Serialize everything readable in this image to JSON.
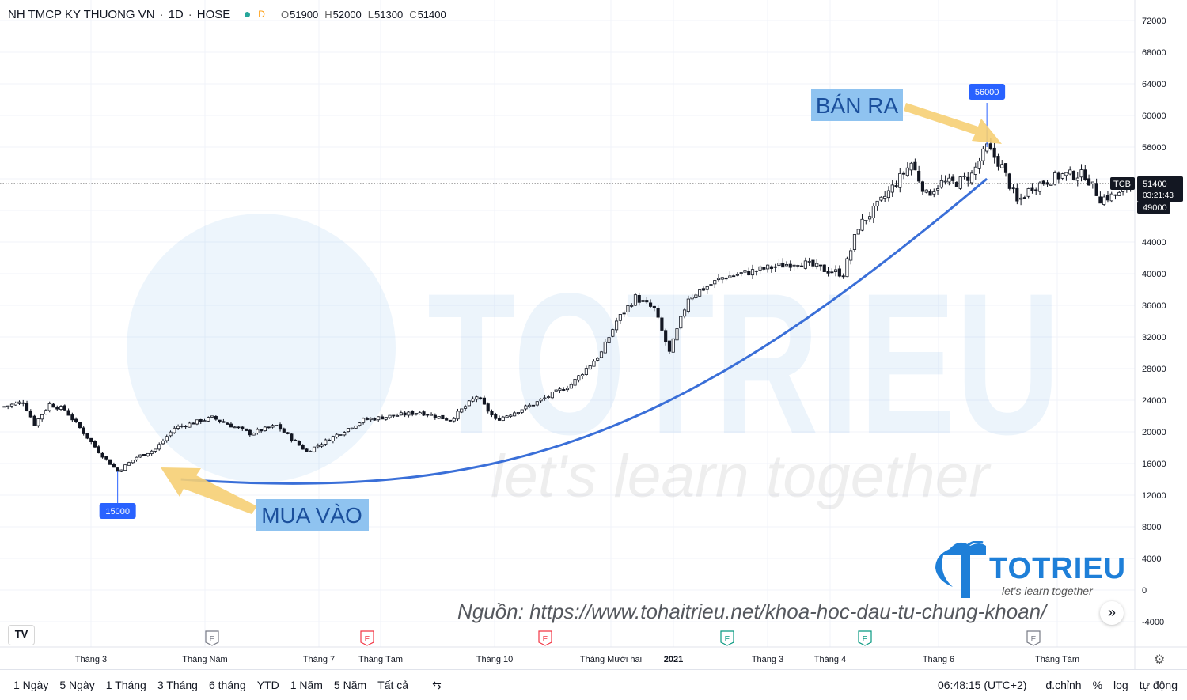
{
  "header": {
    "symbol_name": "NH TMCP KY THUONG VN",
    "interval": "1D",
    "exchange": "HOSE",
    "badge": "D",
    "ohlc": [
      {
        "k": "O",
        "v": "51900"
      },
      {
        "k": "H",
        "v": "52000"
      },
      {
        "k": "L",
        "v": "51300"
      },
      {
        "k": "C",
        "v": "51400"
      }
    ]
  },
  "annotations": {
    "buy_text": "MUA VÀO",
    "sell_text": "BÁN RA",
    "low_label": "15000",
    "high_label": "56000"
  },
  "price_tag": {
    "ticker": "TCB",
    "price": "51400",
    "countdown": "03:21:43",
    "crosshair": "49000"
  },
  "watermark": {
    "big": "TOTRIEU",
    "small": "let's learn together"
  },
  "logo": {
    "word": "TOTRIEU",
    "tag": "let's learn together"
  },
  "source_text": "Nguồn: https://www.tohaitrieu.net/khoa-hoc-dau-tu-chung-khoan/",
  "bottom": {
    "ranges": [
      "1 Ngày",
      "5 Ngày",
      "1 Tháng",
      "3 Tháng",
      "6 tháng",
      "YTD",
      "1 Năm",
      "5 Năm",
      "Tất cả"
    ],
    "time": "06:48:15 (UTC+2)",
    "adjust": "đ.chỉnh",
    "percent": "%",
    "log": "log",
    "auto": "tự động"
  },
  "colors": {
    "curve": "#3a6fd8",
    "annotation_bg": "#8fc3f0",
    "annotation_text": "#1b4f9c",
    "arrow": "#f6cf74",
    "label_bg": "#2962ff",
    "earnings_gray": "#787b86",
    "earnings_red": "#f23645",
    "earnings_green": "#089981"
  },
  "chart_data": {
    "type": "candlestick",
    "y_ticks": [
      72000,
      68000,
      64000,
      60000,
      56000,
      52000,
      48000,
      44000,
      40000,
      36000,
      32000,
      28000,
      24000,
      20000,
      16000,
      12000,
      8000,
      4000,
      0,
      -4000
    ],
    "ylim": [
      -6000,
      73500
    ],
    "x_ticks": [
      "Tháng 3",
      "Tháng Năm",
      "Tháng 7",
      "Tháng Tám",
      "Tháng 10",
      "Tháng Mười hai",
      "2021",
      "Tháng 3",
      "Tháng 4",
      "Tháng 6",
      "Tháng Tám"
    ],
    "earnings_markers": [
      {
        "label": "E",
        "color": "gray"
      },
      {
        "label": "E",
        "color": "red"
      },
      {
        "label": "E",
        "color": "red"
      },
      {
        "label": "E",
        "color": "green"
      },
      {
        "label": "E",
        "color": "green"
      },
      {
        "label": "E",
        "color": "gray"
      }
    ],
    "trend_close": [
      [
        0,
        23200
      ],
      [
        5,
        23800
      ],
      [
        8,
        21000
      ],
      [
        12,
        23500
      ],
      [
        16,
        22800
      ],
      [
        20,
        20500
      ],
      [
        25,
        17500
      ],
      [
        30,
        15000
      ],
      [
        35,
        16800
      ],
      [
        40,
        17800
      ],
      [
        45,
        20500
      ],
      [
        55,
        21800
      ],
      [
        65,
        19800
      ],
      [
        72,
        20800
      ],
      [
        80,
        17500
      ],
      [
        95,
        21500
      ],
      [
        110,
        22500
      ],
      [
        118,
        21500
      ],
      [
        125,
        24500
      ],
      [
        130,
        21500
      ],
      [
        140,
        23500
      ],
      [
        150,
        26000
      ],
      [
        158,
        30000
      ],
      [
        162,
        34000
      ],
      [
        167,
        37000
      ],
      [
        172,
        35500
      ],
      [
        176,
        30000
      ],
      [
        181,
        37000
      ],
      [
        190,
        39500
      ],
      [
        200,
        40500
      ],
      [
        210,
        41500
      ],
      [
        217,
        40500
      ],
      [
        222,
        40000
      ],
      [
        226,
        46000
      ],
      [
        230,
        48000
      ],
      [
        236,
        51500
      ],
      [
        240,
        54000
      ],
      [
        244,
        50000
      ],
      [
        248,
        51500
      ],
      [
        252,
        51500
      ],
      [
        256,
        52500
      ],
      [
        260,
        56000
      ],
      [
        264,
        53500
      ],
      [
        268,
        49000
      ],
      [
        272,
        51000
      ],
      [
        280,
        52500
      ],
      [
        286,
        52500
      ],
      [
        290,
        49500
      ],
      [
        295,
        50000
      ],
      [
        298,
        51400
      ]
    ],
    "last_price": 51400,
    "crosshair_price": 49000,
    "highlight_low": 15000,
    "highlight_high": 56000
  }
}
